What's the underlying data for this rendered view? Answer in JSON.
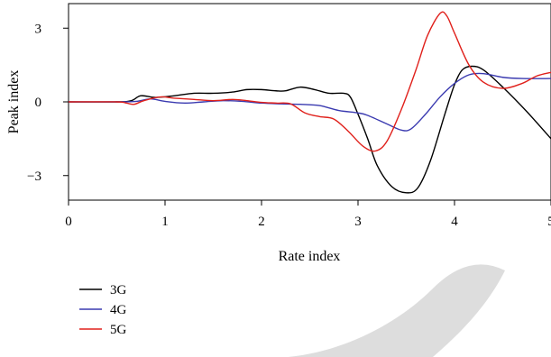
{
  "chart_data": {
    "type": "line",
    "xlabel": "Rate index",
    "ylabel": "Peak index",
    "xlim": [
      0,
      5
    ],
    "ylim": [
      -4,
      4
    ],
    "x_ticks": [
      "0",
      "1",
      "2",
      "3",
      "4",
      "5"
    ],
    "y_ticks": [
      "3",
      "0",
      "−3"
    ],
    "y_tick_values": [
      3,
      0,
      -3
    ],
    "x_tick_values": [
      0,
      1,
      2,
      3,
      4,
      5
    ],
    "grid": false,
    "legend_position": "bottom-left",
    "series": [
      {
        "name": "3G",
        "color": "#000000",
        "points": [
          [
            0,
            0
          ],
          [
            0.5,
            0
          ],
          [
            0.65,
            0.05
          ],
          [
            0.75,
            0.25
          ],
          [
            0.9,
            0.18
          ],
          [
            1.1,
            0.25
          ],
          [
            1.3,
            0.35
          ],
          [
            1.5,
            0.35
          ],
          [
            1.7,
            0.4
          ],
          [
            1.85,
            0.5
          ],
          [
            2.0,
            0.5
          ],
          [
            2.15,
            0.45
          ],
          [
            2.25,
            0.45
          ],
          [
            2.4,
            0.6
          ],
          [
            2.55,
            0.5
          ],
          [
            2.7,
            0.35
          ],
          [
            2.85,
            0.35
          ],
          [
            2.92,
            0.2
          ],
          [
            3.0,
            -0.5
          ],
          [
            3.1,
            -1.5
          ],
          [
            3.2,
            -2.6
          ],
          [
            3.35,
            -3.45
          ],
          [
            3.5,
            -3.7
          ],
          [
            3.62,
            -3.5
          ],
          [
            3.75,
            -2.4
          ],
          [
            3.9,
            -0.5
          ],
          [
            4.0,
            0.7
          ],
          [
            4.08,
            1.3
          ],
          [
            4.18,
            1.45
          ],
          [
            4.3,
            1.3
          ],
          [
            4.5,
            0.6
          ],
          [
            4.75,
            -0.4
          ],
          [
            5.0,
            -1.5
          ]
        ]
      },
      {
        "name": "4G",
        "color": "#3a3ab0",
        "points": [
          [
            0,
            0
          ],
          [
            0.5,
            0
          ],
          [
            0.7,
            0.02
          ],
          [
            0.85,
            0.12
          ],
          [
            1.0,
            0.02
          ],
          [
            1.2,
            -0.05
          ],
          [
            1.4,
            0.0
          ],
          [
            1.6,
            0.05
          ],
          [
            1.8,
            0.02
          ],
          [
            2.0,
            -0.05
          ],
          [
            2.2,
            -0.08
          ],
          [
            2.4,
            -0.1
          ],
          [
            2.6,
            -0.15
          ],
          [
            2.8,
            -0.35
          ],
          [
            3.0,
            -0.45
          ],
          [
            3.1,
            -0.55
          ],
          [
            3.3,
            -0.9
          ],
          [
            3.45,
            -1.15
          ],
          [
            3.55,
            -1.1
          ],
          [
            3.7,
            -0.5
          ],
          [
            3.85,
            0.2
          ],
          [
            4.0,
            0.75
          ],
          [
            4.15,
            1.1
          ],
          [
            4.3,
            1.15
          ],
          [
            4.5,
            1.0
          ],
          [
            4.7,
            0.95
          ],
          [
            5.0,
            0.95
          ]
        ]
      },
      {
        "name": "5G",
        "color": "#e0201b",
        "points": [
          [
            0,
            0
          ],
          [
            0.5,
            0
          ],
          [
            0.6,
            -0.05
          ],
          [
            0.68,
            -0.1
          ],
          [
            0.78,
            0.05
          ],
          [
            0.95,
            0.2
          ],
          [
            1.1,
            0.15
          ],
          [
            1.3,
            0.1
          ],
          [
            1.5,
            0.05
          ],
          [
            1.7,
            0.1
          ],
          [
            1.85,
            0.05
          ],
          [
            2.0,
            -0.02
          ],
          [
            2.15,
            -0.05
          ],
          [
            2.3,
            -0.08
          ],
          [
            2.45,
            -0.45
          ],
          [
            2.6,
            -0.6
          ],
          [
            2.75,
            -0.7
          ],
          [
            2.9,
            -1.2
          ],
          [
            3.05,
            -1.8
          ],
          [
            3.18,
            -2.0
          ],
          [
            3.3,
            -1.6
          ],
          [
            3.45,
            -0.3
          ],
          [
            3.6,
            1.3
          ],
          [
            3.72,
            2.7
          ],
          [
            3.85,
            3.6
          ],
          [
            3.92,
            3.5
          ],
          [
            4.0,
            2.8
          ],
          [
            4.15,
            1.5
          ],
          [
            4.3,
            0.8
          ],
          [
            4.5,
            0.55
          ],
          [
            4.7,
            0.75
          ],
          [
            4.85,
            1.05
          ],
          [
            5.0,
            1.2
          ]
        ]
      }
    ]
  }
}
